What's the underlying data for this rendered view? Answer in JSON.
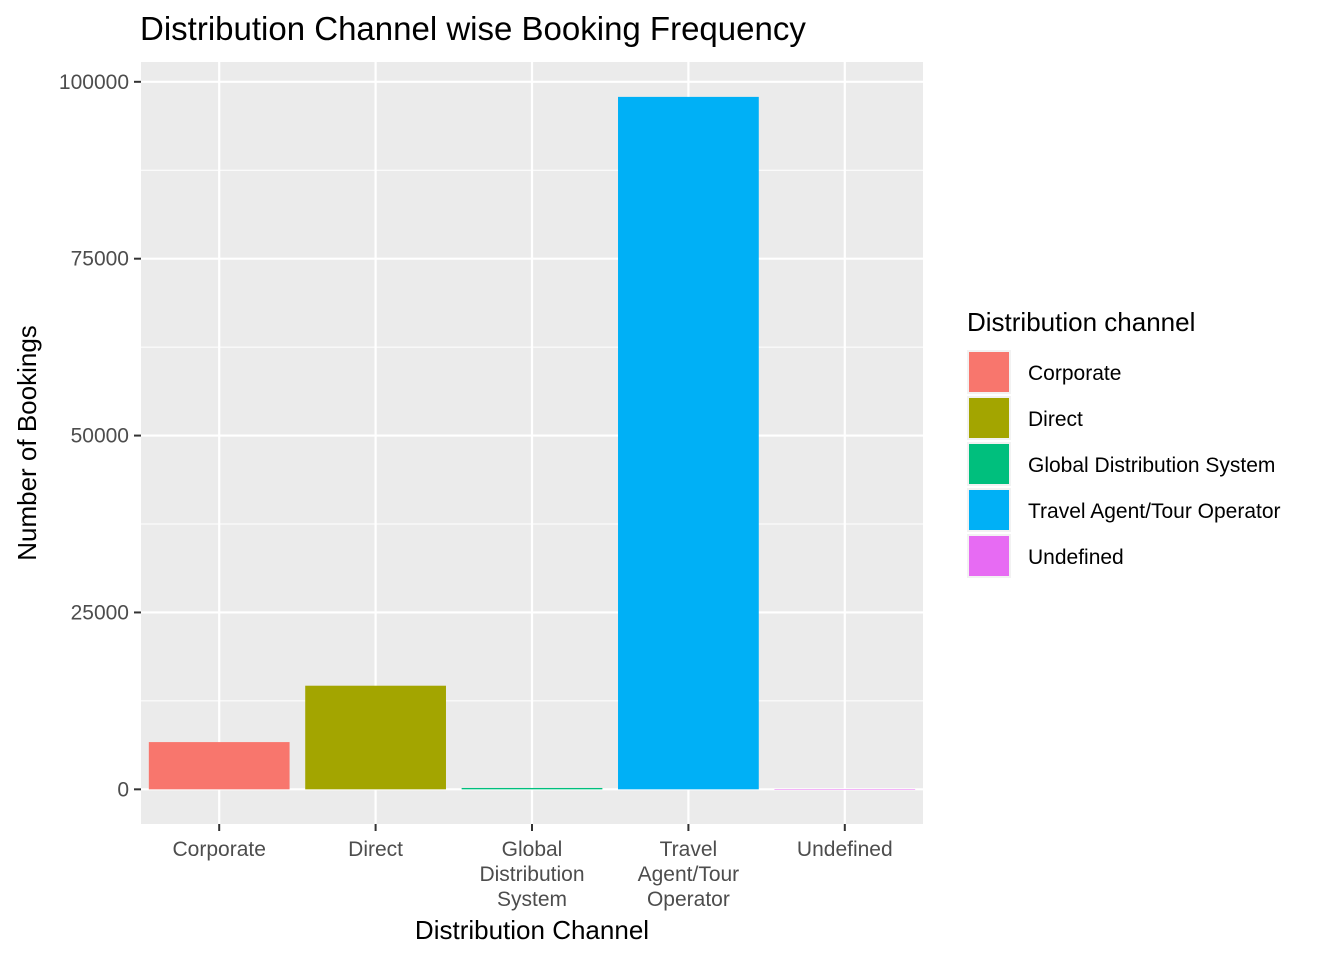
{
  "chart_data": {
    "type": "bar",
    "title": "Distribution Channel wise Booking Frequency",
    "xlabel": "Distribution Channel",
    "ylabel": "Number of Bookings",
    "categories": [
      "Corporate",
      "Direct",
      "Global Distribution System",
      "Travel Agent/Tour Operator",
      "Undefined"
    ],
    "category_tick_lines": [
      [
        "Corporate"
      ],
      [
        "Direct"
      ],
      [
        "Global",
        "Distribution",
        "System"
      ],
      [
        "Travel",
        "Agent/Tour",
        "Operator"
      ],
      [
        "Undefined"
      ]
    ],
    "values": [
      6677,
      14645,
      193,
      97870,
      5
    ],
    "colors": [
      "#F8766D",
      "#A3A500",
      "#00BF7D",
      "#00B0F6",
      "#E76BF3"
    ],
    "ylim": [
      -4900,
      102800
    ],
    "yticks": [
      0,
      25000,
      50000,
      75000,
      100000
    ],
    "ytick_labels": [
      "0",
      "25000",
      "50000",
      "75000",
      "100000"
    ],
    "grid": true,
    "legend": {
      "title": "Distribution channel",
      "position": "right",
      "entries": [
        "Corporate",
        "Direct",
        "Global Distribution System",
        "Travel Agent/Tour Operator",
        "Undefined"
      ]
    }
  }
}
